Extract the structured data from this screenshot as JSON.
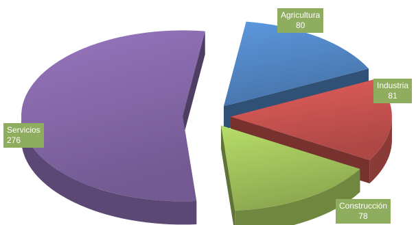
{
  "chart_data": {
    "type": "pie",
    "style": "3d-exploded",
    "title": "",
    "categories": [
      "Agricultura",
      "Industria",
      "Construcción",
      "Servicios"
    ],
    "values": [
      80,
      81,
      78,
      276
    ],
    "colors": [
      "#4f81bd",
      "#c0504d",
      "#9bbb59",
      "#8064a2"
    ],
    "label_color": "#8ead5e",
    "legend": "none"
  }
}
